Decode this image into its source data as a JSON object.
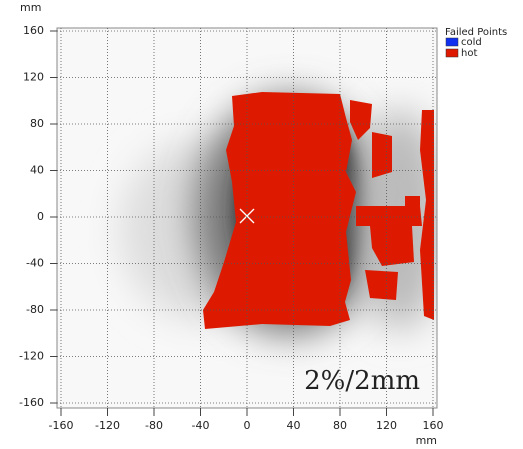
{
  "chart_data": {
    "type": "heatmap",
    "x_unit": "mm",
    "y_unit": "mm",
    "xlim": [
      -160,
      160
    ],
    "ylim": [
      -160,
      160
    ],
    "xticks": [
      -160,
      -120,
      -80,
      -40,
      0,
      40,
      80,
      120,
      160
    ],
    "yticks": [
      -160,
      -120,
      -80,
      -40,
      0,
      40,
      80,
      120,
      160
    ],
    "grid": true,
    "legend": {
      "title": "Failed Points",
      "entries": [
        {
          "name": "cold",
          "color": "#1030f0"
        },
        {
          "name": "hot",
          "color": "#dd1a00"
        }
      ]
    },
    "annotation": "2%/2mm"
  }
}
